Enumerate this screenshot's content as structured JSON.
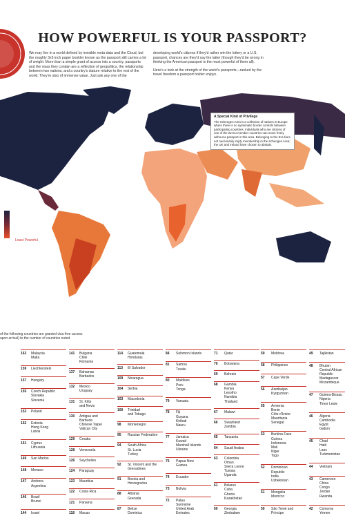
{
  "header": {
    "title": "HOW POWERFUL IS YOUR PASSPORT?",
    "intro_left": "We may live in a world defined by invisible meta-data and the Cloud, but the roughly 3x5 inch paper booklet known as the passport still carries a lot of weight. More than a simple grant of access into a country, passports and the visas they contain are a reflection of geopolitics, the relationship between two nations, and a country's stature relative to the rest of the world. They're also of immense value. Just ask any one of the",
    "intro_right": [
      "developing world's citizens if they'd rather win the lottery or a U.S. passport, chances are they'd say the latter (though they'd be wrong in thinking the American passport is the most powerful of them all).",
      "Here's a look at the strength of the world's passports—ranked by the travel freedom a passport holder enjoys."
    ]
  },
  "callout": {
    "title": "A Special Kind of Privilege",
    "body": "The Schengen Area is a collection of nations in Europe where there is no systematic border controls between participating countries. Individuals who are citizens of one of the 22 EU member countries can move freely without a passport in this area. Belonging to the EU does not necessarily imply membership in the Schengen Area; the UK and Ireland have chosen to abstain."
  },
  "legend": {
    "low_label": "Least Powerful"
  },
  "rankings": {
    "note": [
      "of the following countries are granted visa-free access",
      "upon arrival) to the number of countries noted."
    ],
    "columns": [
      [
        {
          "score": 163,
          "countries": [
            "Malaysia",
            "Malta"
          ]
        },
        {
          "score": 159,
          "countries": [
            "Liechtenstein"
          ]
        },
        {
          "score": 157,
          "countries": [
            "Hungary"
          ]
        },
        {
          "score": 155,
          "countries": [
            "Czech Republic",
            "Slovakia",
            "Slovenia"
          ]
        },
        {
          "score": 153,
          "countries": [
            "Poland"
          ]
        },
        {
          "score": 152,
          "countries": [
            "Estonia",
            "Hong Kong",
            "Latvia"
          ]
        },
        {
          "score": 151,
          "countries": [
            "Cyprus",
            "Lithuania"
          ]
        },
        {
          "score": 149,
          "countries": [
            "San Marino"
          ]
        },
        {
          "score": 148,
          "countries": [
            "Monaco"
          ]
        },
        {
          "score": 147,
          "countries": [
            "Andorra",
            "Argentina"
          ]
        },
        {
          "score": 146,
          "countries": [
            "Brazil",
            "Brunei"
          ]
        },
        {
          "score": 144,
          "countries": [
            "Israel"
          ]
        }
      ],
      [
        {
          "score": 141,
          "countries": [
            "Bulgaria",
            "Chile",
            "Romania"
          ]
        },
        {
          "score": 137,
          "countries": [
            "Bahamas",
            "Barbados"
          ]
        },
        {
          "score": 132,
          "countries": [
            "Mexico",
            "Uruguay"
          ]
        },
        {
          "score": 131,
          "countries": [
            "St. Kitts",
            "and Nevis"
          ]
        },
        {
          "score": 130,
          "countries": [
            "Antigua and",
            "Barbuda",
            "Chinese Taipei",
            "Vatican City"
          ]
        },
        {
          "score": 129,
          "countries": [
            "Croatia"
          ]
        },
        {
          "score": 128,
          "countries": [
            "Venezuela"
          ]
        },
        {
          "score": 126,
          "countries": [
            "Seychelles"
          ]
        },
        {
          "score": 124,
          "countries": [
            "Paraguay"
          ]
        },
        {
          "score": 123,
          "countries": [
            "Mauritius"
          ]
        },
        {
          "score": 122,
          "countries": [
            "Costa Rica"
          ]
        },
        {
          "score": 121,
          "countries": [
            "Panama"
          ]
        },
        {
          "score": 118,
          "countries": [
            "Macao"
          ]
        }
      ],
      [
        {
          "score": 114,
          "countries": [
            "Guatemala",
            "Honduras"
          ]
        },
        {
          "score": 113,
          "countries": [
            "El Salvador"
          ]
        },
        {
          "score": 109,
          "countries": [
            "Nicaragua"
          ]
        },
        {
          "score": 104,
          "countries": [
            "Serbia"
          ]
        },
        {
          "score": 103,
          "countries": [
            "Macedonia"
          ]
        },
        {
          "score": 100,
          "countries": [
            "Trinidad",
            "and Tobago"
          ]
        },
        {
          "score": 98,
          "countries": [
            "Montenegro"
          ]
        },
        {
          "score": 95,
          "countries": [
            "Russian Federation"
          ]
        },
        {
          "score": 94,
          "countries": [
            "South Africa",
            "St. Lucia",
            "Turkey"
          ]
        },
        {
          "score": 92,
          "countries": [
            "St. Vincent and the",
            "Grenadines"
          ]
        },
        {
          "score": 91,
          "countries": [
            "Bosnia and",
            "Herzegovina"
          ]
        },
        {
          "score": 88,
          "countries": [
            "Albania",
            "Grenada"
          ]
        },
        {
          "score": 87,
          "countries": [
            "Belize",
            "Dominica"
          ]
        }
      ],
      [
        {
          "score": 84,
          "countries": [
            "Solomon Islands"
          ]
        },
        {
          "score": 81,
          "countries": [
            "Samoa",
            "Tuvalu"
          ]
        },
        {
          "score": 80,
          "countries": [
            "Maldives",
            "Peru",
            "Tonga"
          ]
        },
        {
          "score": 79,
          "countries": [
            "Vanuatu"
          ]
        },
        {
          "score": 78,
          "countries": [
            "Fiji",
            "Guyana",
            "Kiribati",
            "Nauru"
          ]
        },
        {
          "score": 77,
          "countries": [
            "Jamaica",
            "Kuwait",
            "Marshall Islands",
            "Ukraine"
          ]
        },
        {
          "score": 75,
          "countries": [
            "Papua New",
            "Guinea"
          ]
        },
        {
          "score": 74,
          "countries": [
            "Ecuador"
          ]
        },
        {
          "score": 73,
          "countries": [
            "Bolivia"
          ]
        },
        {
          "score": 72,
          "countries": [
            "Palau",
            "Suriname",
            "United Arab",
            "Emirates"
          ]
        }
      ],
      [
        {
          "score": 71,
          "countries": [
            "Qatar"
          ]
        },
        {
          "score": 70,
          "countries": [
            "Botswana"
          ]
        },
        {
          "score": 69,
          "countries": [
            "Bahrain"
          ]
        },
        {
          "score": 68,
          "countries": [
            "Gambia",
            "Kenya",
            "Lesotho",
            "Namibia",
            "Thailand"
          ]
        },
        {
          "score": 67,
          "countries": [
            "Malawi"
          ]
        },
        {
          "score": 66,
          "countries": [
            "Swaziland",
            "Zambia"
          ]
        },
        {
          "score": 65,
          "countries": [
            "Tanzania"
          ]
        },
        {
          "score": 64,
          "countries": [
            "Saudi Arabia"
          ]
        },
        {
          "score": 63,
          "countries": [
            "Colombia",
            "Oman",
            "Sierra Leone",
            "Tunisia",
            "Uganda"
          ]
        },
        {
          "score": 61,
          "countries": [
            "Belarus",
            "Cuba",
            "Ghana",
            "Kazakhstan"
          ]
        },
        {
          "score": 60,
          "countries": [
            "Georgia",
            "Zimbabwe"
          ]
        }
      ],
      [
        {
          "score": 59,
          "countries": [
            "Moldova"
          ]
        },
        {
          "score": 58,
          "countries": [
            "Philippines"
          ]
        },
        {
          "score": 57,
          "countries": [
            "Cape Verde"
          ]
        },
        {
          "score": 56,
          "countries": [
            "Azerbaijan",
            "Kyrgyzstan"
          ]
        },
        {
          "score": 55,
          "countries": [
            "Armenia",
            "Benin",
            "Côte d'Ivoire",
            "Mauritania",
            "Senegal"
          ]
        },
        {
          "score": 53,
          "countries": [
            "Burkina Faso",
            "Guinea",
            "Indonesia",
            "Mali",
            "Niger",
            "Togo"
          ]
        },
        {
          "score": 52,
          "countries": [
            "Dominican",
            "Republic",
            "India",
            "Uzbekistan"
          ]
        },
        {
          "score": 51,
          "countries": [
            "Mongolia",
            "Morocco"
          ]
        },
        {
          "score": 50,
          "countries": [
            "São Tomé and",
            "Príncipe"
          ]
        }
      ],
      [
        {
          "score": 49,
          "countries": [
            "Tajikistan"
          ]
        },
        {
          "score": 48,
          "countries": [
            "Bhutan",
            "Central African",
            "Republic",
            "Madagascar",
            "Mozambique"
          ]
        },
        {
          "score": 47,
          "countries": [
            "Guinea-Bissau",
            "Nigeria",
            "Timor Leste"
          ]
        },
        {
          "score": 46,
          "countries": [
            "Algeria",
            "Cambodia",
            "Egypt",
            "Gabon"
          ]
        },
        {
          "score": 45,
          "countries": [
            "Chad",
            "Haiti",
            "Laos",
            "Turkmenistan"
          ]
        },
        {
          "score": 44,
          "countries": [
            "Vietnam"
          ]
        },
        {
          "score": 43,
          "countries": [
            "Cameroon",
            "China",
            "Congo",
            "Jordan",
            "Rwanda"
          ]
        },
        {
          "score": 42,
          "countries": [
            "Comoros",
            "Yemen"
          ]
        }
      ]
    ]
  }
}
